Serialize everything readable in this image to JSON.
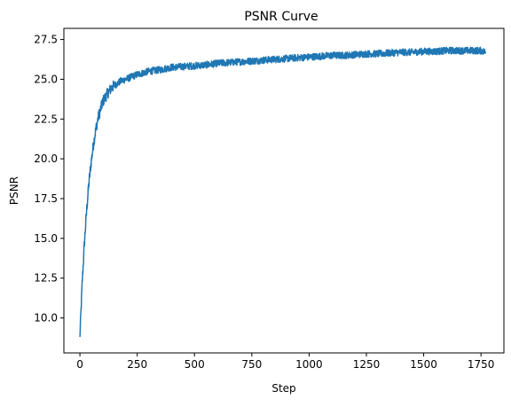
{
  "chart_data": {
    "type": "line",
    "title": "PSNR Curve",
    "xlabel": "Step",
    "ylabel": "PSNR",
    "xlim": [
      -70,
      1850
    ],
    "ylim": [
      7.8,
      28.2
    ],
    "xticks": [
      0,
      250,
      500,
      750,
      1000,
      1250,
      1500,
      1750
    ],
    "xtick_labels": [
      "0",
      "250",
      "500",
      "750",
      "1000",
      "1250",
      "1500",
      "1750"
    ],
    "yticks": [
      10.0,
      12.5,
      15.0,
      17.5,
      20.0,
      22.5,
      25.0,
      27.5
    ],
    "ytick_labels": [
      "10.0",
      "12.5",
      "15.0",
      "17.5",
      "20.0",
      "22.5",
      "25.0",
      "27.5"
    ],
    "grid": false,
    "legend": "none",
    "line_color": "#1f77b4",
    "noise_amplitude": 0.22,
    "series": [
      {
        "x": [
          0,
          5,
          10,
          20,
          30,
          40,
          50,
          60,
          70,
          80,
          90,
          100,
          120,
          140,
          160,
          180,
          200,
          250,
          300,
          350,
          400,
          450,
          500,
          550,
          600,
          650,
          700,
          750,
          800,
          850,
          900,
          950,
          1000,
          1050,
          1100,
          1150,
          1200,
          1250,
          1300,
          1350,
          1400,
          1450,
          1500,
          1550,
          1600,
          1650,
          1700,
          1750,
          1770
        ],
        "y": [
          8.9,
          10.5,
          12.2,
          14.8,
          16.9,
          18.6,
          19.9,
          21.0,
          21.9,
          22.6,
          23.1,
          23.6,
          24.1,
          24.5,
          24.7,
          24.9,
          25.0,
          25.3,
          25.5,
          25.6,
          25.75,
          25.8,
          25.85,
          25.9,
          26.0,
          26.05,
          26.1,
          26.15,
          26.2,
          26.25,
          26.3,
          26.35,
          26.4,
          26.45,
          26.5,
          26.5,
          26.55,
          26.6,
          26.6,
          26.65,
          26.7,
          26.7,
          26.75,
          26.75,
          26.8,
          26.8,
          26.8,
          26.8,
          26.7
        ]
      }
    ]
  }
}
